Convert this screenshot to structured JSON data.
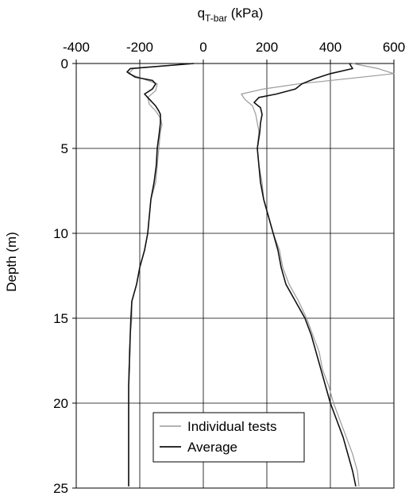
{
  "chart_data": {
    "type": "line",
    "xlabel_main": "q",
    "xlabel_sub": "T-bar",
    "xlabel_unit": " (kPa)",
    "ylabel": "Depth (m)",
    "xlim": [
      -400,
      600
    ],
    "ylim": [
      0,
      25
    ],
    "x_ticks": [
      "-400",
      "-200",
      "0",
      "200",
      "400",
      "600"
    ],
    "y_ticks": [
      "0",
      "5",
      "10",
      "15",
      "20",
      "25"
    ],
    "x_axis_position": "top",
    "y_axis_inverted": true,
    "grid": true,
    "legend": {
      "position": "bottom-center",
      "entries": [
        "Individual tests",
        "Average"
      ]
    },
    "colors": {
      "individual": "#9a9a9a",
      "average": "#111111",
      "grid": "#000000"
    },
    "series": [
      {
        "name": "Individual tests",
        "note": "representative trace of the individual test profiles (extraction branch, negative)",
        "depth": [
          0,
          0.3,
          0.6,
          0.9,
          1.2,
          1.6,
          2.0,
          2.4,
          2.8,
          3.2,
          3.6,
          4.0,
          5.0,
          6.0,
          7.0,
          8.0,
          9.0,
          10.0,
          11.0,
          12.0,
          13.0,
          14.0,
          15.0,
          16.0,
          17.0,
          18.0,
          19.0,
          20.0,
          21.0,
          22.0,
          23.0,
          24.0,
          24.9
        ],
        "q": [
          -30,
          -220,
          -235,
          -190,
          -145,
          -150,
          -175,
          -170,
          -150,
          -135,
          -130,
          -135,
          -140,
          -145,
          -150,
          -165,
          -170,
          -175,
          -185,
          -200,
          -210,
          -225,
          -225,
          -230,
          -230,
          -235,
          -235,
          -235,
          -235,
          -235,
          -235,
          -235,
          -235
        ]
      },
      {
        "name": "Average",
        "note": "average extraction branch (negative)",
        "depth": [
          0,
          0.3,
          0.5,
          0.8,
          1.0,
          1.2,
          1.5,
          1.8,
          2.0,
          2.2,
          2.5,
          2.8,
          3.0,
          3.5,
          4.0,
          5.0,
          6.0,
          7.0,
          8.0,
          9.0,
          10.0,
          11.0,
          12.0,
          13.0,
          14.0,
          15.0,
          16.0,
          17.0,
          18.0,
          19.0,
          20.0,
          21.0,
          22.0,
          23.0,
          24.0,
          24.9
        ],
        "q": [
          -30,
          -230,
          -240,
          -215,
          -160,
          -150,
          -160,
          -185,
          -175,
          -165,
          -150,
          -140,
          -135,
          -135,
          -138,
          -145,
          -148,
          -155,
          -165,
          -170,
          -175,
          -185,
          -200,
          -210,
          -225,
          -228,
          -230,
          -232,
          -233,
          -235,
          -235,
          -235,
          -235,
          -235,
          -235,
          -235
        ]
      },
      {
        "name": "Individual tests",
        "note": "representative trace of the individual test profiles (penetration branch, positive)",
        "depth": [
          0,
          0.3,
          0.6,
          0.9,
          1.2,
          1.5,
          1.8,
          2.1,
          2.5,
          3.0,
          3.5,
          4.0,
          5.0,
          6.0,
          7.0,
          8.0,
          9.0,
          10.0,
          11.0,
          12.0,
          13.0,
          14.0,
          15.0,
          16.0,
          17.0,
          18.0,
          19.0,
          20.0,
          21.0,
          22.0,
          23.0,
          24.0,
          24.9
        ],
        "q": [
          470,
          550,
          600,
          450,
          300,
          190,
          120,
          130,
          155,
          165,
          170,
          175,
          170,
          175,
          185,
          190,
          205,
          220,
          240,
          250,
          270,
          300,
          325,
          345,
          365,
          375,
          395,
          410,
          430,
          450,
          470,
          485,
          490
        ]
      },
      {
        "name": "Average",
        "note": "average penetration branch (positive)",
        "depth": [
          0,
          0.3,
          0.6,
          0.9,
          1.2,
          1.5,
          1.8,
          2.0,
          2.3,
          2.6,
          3.0,
          3.5,
          4.0,
          5.0,
          6.0,
          7.0,
          8.0,
          9.0,
          10.0,
          11.0,
          12.0,
          13.0,
          14.0,
          15.0,
          16.0,
          17.0,
          18.0,
          19.0,
          20.0,
          21.0,
          22.0,
          23.0,
          24.0,
          24.9
        ],
        "q": [
          460,
          470,
          400,
          350,
          310,
          290,
          230,
          175,
          160,
          180,
          185,
          180,
          178,
          170,
          175,
          180,
          190,
          205,
          220,
          235,
          245,
          260,
          290,
          320,
          340,
          355,
          370,
          385,
          400,
          420,
          440,
          455,
          470,
          480
        ]
      }
    ]
  }
}
